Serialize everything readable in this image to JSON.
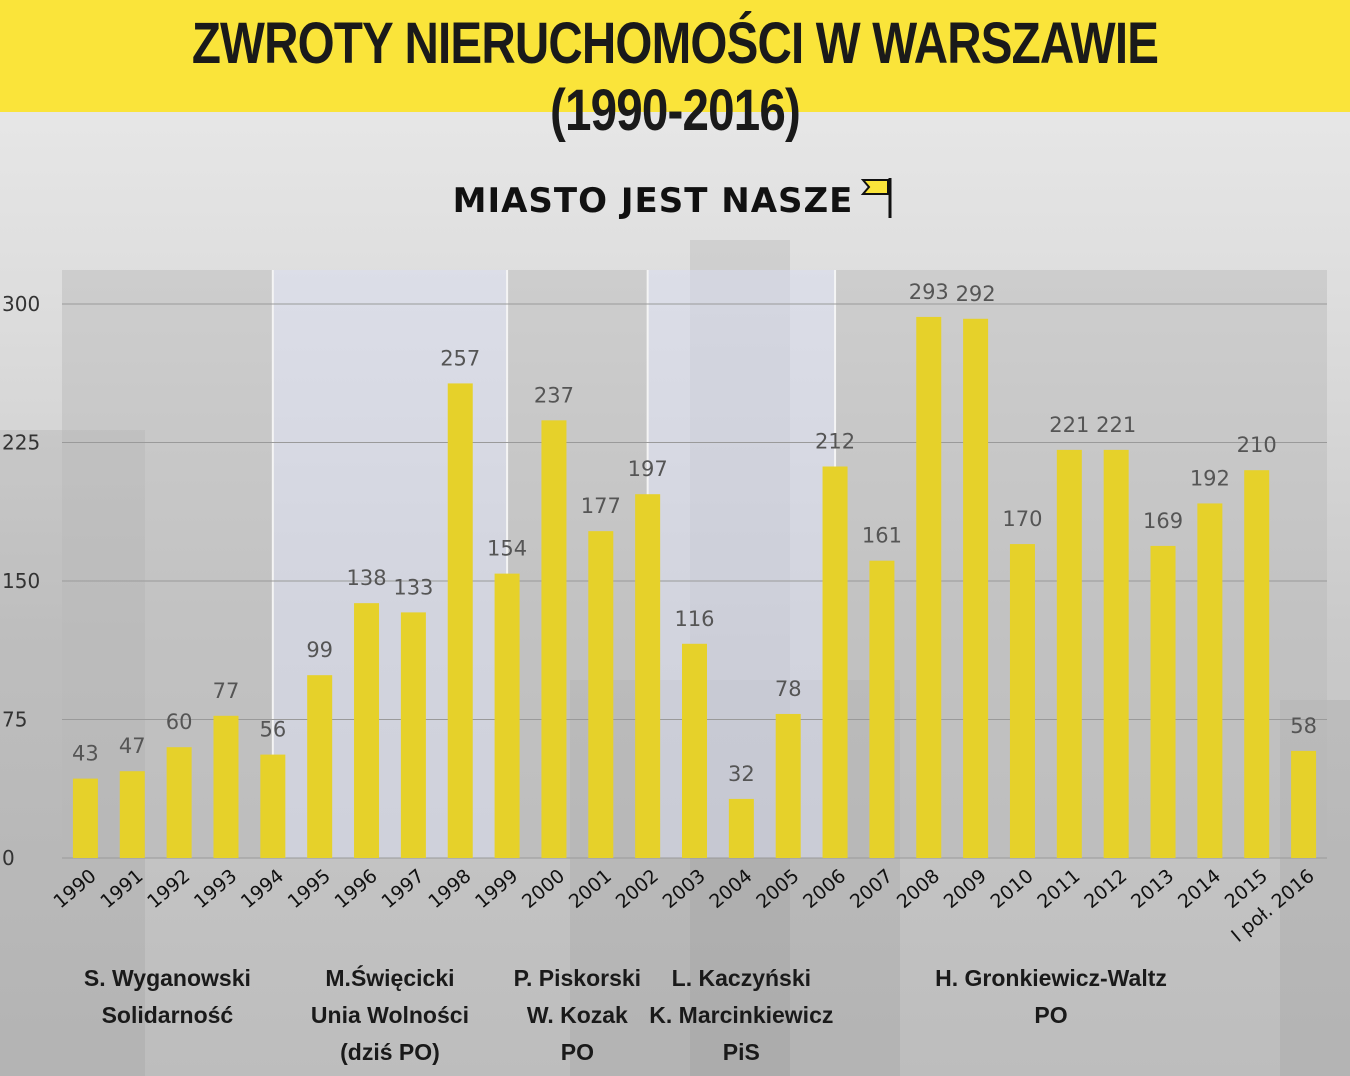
{
  "header": {
    "title": "ZWROTY NIERUCHOMOŚCI W WARSZAWIE (1990-2016)"
  },
  "brand": {
    "logo_text": "MIASTO JEST NASZE"
  },
  "colors": {
    "header_bg": "#fae43a",
    "bar": "#e6d12a",
    "grid": "#9a9a9a",
    "period_dark": "#b8b8b8",
    "period_light": "#d8dcef"
  },
  "chart_data": {
    "type": "bar",
    "title": "ZWROTY NIERUCHOMOŚCI W WARSZAWIE (1990-2016)",
    "categories": [
      "1990",
      "1991",
      "1992",
      "1993",
      "1994",
      "1995",
      "1996",
      "1997",
      "1998",
      "1999",
      "2000",
      "2001",
      "2002",
      "2003",
      "2004",
      "2005",
      "2006",
      "2007",
      "2008",
      "2009",
      "2010",
      "2011",
      "2012",
      "2013",
      "2014",
      "2015",
      "I poł. 2016"
    ],
    "values": [
      43,
      47,
      60,
      77,
      56,
      99,
      138,
      133,
      257,
      154,
      237,
      177,
      197,
      116,
      32,
      78,
      212,
      161,
      293,
      292,
      170,
      221,
      221,
      169,
      192,
      210,
      58
    ],
    "ylim": [
      0,
      320
    ],
    "yticks": [
      0,
      75,
      150,
      225,
      300
    ],
    "grid": true,
    "periods": [
      {
        "lines": [
          "S. Wyganowski",
          "Solidarność"
        ],
        "years": [
          "1990",
          "1994"
        ],
        "shade": "dark"
      },
      {
        "lines": [
          "M.Święcicki",
          "Unia Wolności",
          "(dziś PO)"
        ],
        "years": [
          "1994",
          "1999"
        ],
        "shade": "light"
      },
      {
        "lines": [
          "P. Piskorski",
          "W. Kozak",
          "PO"
        ],
        "years": [
          "1999",
          "2002"
        ],
        "shade": "dark"
      },
      {
        "lines": [
          "L. Kaczyński",
          "K. Marcinkiewicz",
          "PiS"
        ],
        "years": [
          "2002",
          "2006"
        ],
        "shade": "light"
      },
      {
        "lines": [
          "H. Gronkiewicz-Waltz",
          "PO"
        ],
        "years": [
          "2006",
          "I poł. 2016"
        ],
        "shade": "dark"
      }
    ]
  }
}
